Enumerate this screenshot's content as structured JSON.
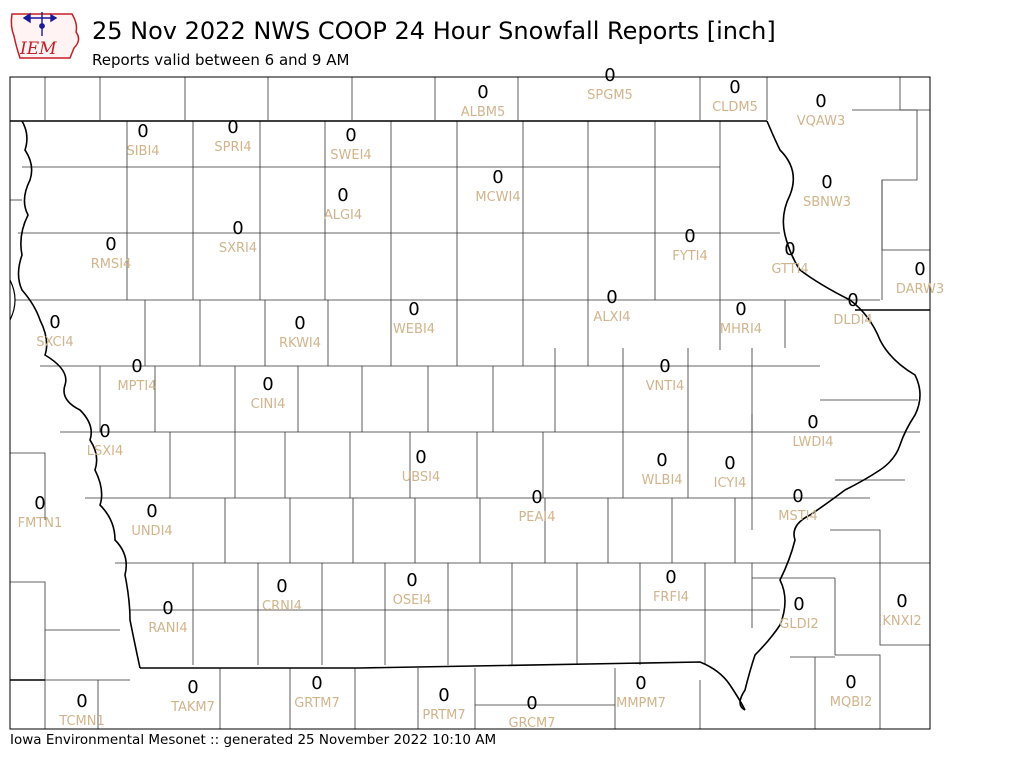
{
  "header": {
    "logo_text": "IEM",
    "title": "25 Nov 2022 NWS COOP 24 Hour Snowfall Reports [inch]",
    "subtitle": "Reports valid between 6 and 9 AM"
  },
  "footer": {
    "text": "Iowa Environmental Mesonet :: generated 25 November 2022 10:10 AM"
  },
  "colors": {
    "value": "#000000",
    "station": "#d2b48c",
    "border": "#000000",
    "county_line": "#333333",
    "logo_accent": "#c41e24",
    "logo_blue": "#1a1a9c"
  },
  "reports": [
    {
      "station": "ALBM5",
      "value": "0"
    },
    {
      "station": "SPGM5",
      "value": "0"
    },
    {
      "station": "CLDM5",
      "value": "0"
    },
    {
      "station": "VQAW3",
      "value": "0"
    },
    {
      "station": "SIBI4",
      "value": "0"
    },
    {
      "station": "SPRI4",
      "value": "0"
    },
    {
      "station": "SWEI4",
      "value": "0"
    },
    {
      "station": "MCWI4",
      "value": "0"
    },
    {
      "station": "SBNW3",
      "value": "0"
    },
    {
      "station": "ALGI4",
      "value": "0"
    },
    {
      "station": "SXRI4",
      "value": "0"
    },
    {
      "station": "RMSI4",
      "value": "0"
    },
    {
      "station": "FYTI4",
      "value": "0"
    },
    {
      "station": "GTTI4",
      "value": "0"
    },
    {
      "station": "DARW3",
      "value": "0"
    },
    {
      "station": "ALXI4",
      "value": "0"
    },
    {
      "station": "DLDI4",
      "value": "0"
    },
    {
      "station": "SXCI4",
      "value": "0"
    },
    {
      "station": "RKWI4",
      "value": "0"
    },
    {
      "station": "WEBI4",
      "value": "0"
    },
    {
      "station": "MHRI4",
      "value": "0"
    },
    {
      "station": "MPTI4",
      "value": "0"
    },
    {
      "station": "CINI4",
      "value": "0"
    },
    {
      "station": "VNTI4",
      "value": "0"
    },
    {
      "station": "LWDI4",
      "value": "0"
    },
    {
      "station": "LSXI4",
      "value": "0"
    },
    {
      "station": "UBSI4",
      "value": "0"
    },
    {
      "station": "WLBI4",
      "value": "0"
    },
    {
      "station": "ICYI4",
      "value": "0"
    },
    {
      "station": "FMTN1",
      "value": "0"
    },
    {
      "station": "UNDI4",
      "value": "0"
    },
    {
      "station": "PEAI4",
      "value": "0"
    },
    {
      "station": "MSTI4",
      "value": "0"
    },
    {
      "station": "CRNI4",
      "value": "0"
    },
    {
      "station": "OSEI4",
      "value": "0"
    },
    {
      "station": "FRFI4",
      "value": "0"
    },
    {
      "station": "RANI4",
      "value": "0"
    },
    {
      "station": "GLDI2",
      "value": "0"
    },
    {
      "station": "KNXI2",
      "value": "0"
    },
    {
      "station": "TCMN1",
      "value": "0"
    },
    {
      "station": "TAKM7",
      "value": "0"
    },
    {
      "station": "GRTM7",
      "value": "0"
    },
    {
      "station": "PRTM7",
      "value": "0"
    },
    {
      "station": "GRCM7",
      "value": "0"
    },
    {
      "station": "MMPM7",
      "value": "0"
    },
    {
      "station": "MQBI2",
      "value": "0"
    }
  ]
}
